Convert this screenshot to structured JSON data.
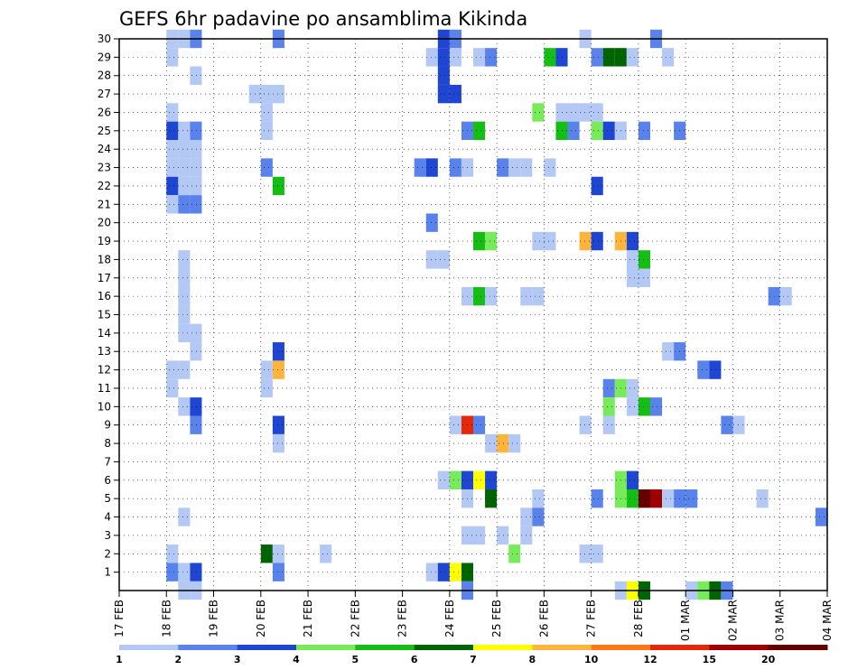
{
  "chart_data": {
    "type": "heatmap",
    "title": "GEFS 6hr padavine po ansamblima Kikinda",
    "xlabel": "",
    "ylabel": "",
    "x_tick_labels": [
      "17 FEB",
      "18 FEB",
      "19 FEB",
      "20 FEB",
      "21 FEB",
      "22 FEB",
      "23 FEB",
      "24 FEB",
      "25 FEB",
      "26 FEB",
      "27 FEB",
      "28 FEB",
      "01 MAR",
      "02 MAR",
      "03 MAR",
      "04 MAR"
    ],
    "y_tick_labels": [
      "1",
      "2",
      "3",
      "4",
      "5",
      "6",
      "7",
      "8",
      "9",
      "10",
      "11",
      "12",
      "13",
      "14",
      "15",
      "16",
      "17",
      "18",
      "19",
      "20",
      "21",
      "22",
      "23",
      "24",
      "25",
      "26",
      "27",
      "28",
      "29",
      "30"
    ],
    "xlim": [
      0,
      60
    ],
    "ylim": [
      0,
      30
    ],
    "x_unit": "6-hour steps from 17 FEB 00Z",
    "grid": true,
    "legend": {
      "position": "bottom",
      "tick_labels": [
        "1",
        "2",
        "3",
        "4",
        "5",
        "6",
        "7",
        "8",
        "10",
        "12",
        "15",
        "20"
      ],
      "colors": [
        "#b4c8f5",
        "#5a82eb",
        "#1e46d2",
        "#78eb5a",
        "#14be14",
        "#006400",
        "#ffff00",
        "#ffb43c",
        "#ff7814",
        "#e6280a",
        "#a00000",
        "#640000"
      ]
    },
    "colors": {
      "1": "#b4c8f5",
      "2": "#5a82eb",
      "3": "#1e46d2",
      "4": "#78eb5a",
      "5": "#14be14",
      "6": "#006400",
      "7": "#ffff00",
      "8": "#ffb43c",
      "9": "#ff7814",
      "10": "#e6280a",
      "11": "#a00000",
      "12": "#640000"
    },
    "cells": [
      [
        4,
        30,
        1
      ],
      [
        5,
        30,
        1
      ],
      [
        6,
        30,
        2
      ],
      [
        13,
        30,
        2
      ],
      [
        27,
        30,
        3
      ],
      [
        28,
        30,
        2
      ],
      [
        39,
        30,
        1
      ],
      [
        45,
        30,
        2
      ],
      [
        4,
        29,
        1
      ],
      [
        26,
        29,
        1
      ],
      [
        27,
        29,
        3
      ],
      [
        28,
        29,
        1
      ],
      [
        30,
        29,
        1
      ],
      [
        31,
        29,
        2
      ],
      [
        36,
        29,
        5
      ],
      [
        37,
        29,
        3
      ],
      [
        40,
        29,
        2
      ],
      [
        41,
        29,
        6
      ],
      [
        42,
        29,
        6
      ],
      [
        43,
        29,
        1
      ],
      [
        46,
        29,
        1
      ],
      [
        6,
        28,
        1
      ],
      [
        27,
        28,
        3
      ],
      [
        11,
        27,
        1
      ],
      [
        12,
        27,
        1
      ],
      [
        13,
        27,
        1
      ],
      [
        27,
        27,
        3
      ],
      [
        28,
        27,
        3
      ],
      [
        4,
        26,
        1
      ],
      [
        12,
        26,
        1
      ],
      [
        35,
        26,
        4
      ],
      [
        37,
        26,
        1
      ],
      [
        38,
        26,
        1
      ],
      [
        39,
        26,
        1
      ],
      [
        40,
        26,
        1
      ],
      [
        4,
        25,
        3
      ],
      [
        5,
        25,
        1
      ],
      [
        6,
        25,
        2
      ],
      [
        12,
        25,
        1
      ],
      [
        29,
        25,
        2
      ],
      [
        30,
        25,
        5
      ],
      [
        37,
        25,
        5
      ],
      [
        38,
        25,
        2
      ],
      [
        40,
        25,
        4
      ],
      [
        41,
        25,
        3
      ],
      [
        42,
        25,
        1
      ],
      [
        44,
        25,
        2
      ],
      [
        47,
        25,
        2
      ],
      [
        4,
        24,
        1
      ],
      [
        5,
        24,
        1
      ],
      [
        6,
        24,
        1
      ],
      [
        4,
        23,
        1
      ],
      [
        5,
        23,
        1
      ],
      [
        6,
        23,
        1
      ],
      [
        12,
        23,
        2
      ],
      [
        25,
        23,
        2
      ],
      [
        26,
        23,
        3
      ],
      [
        28,
        23,
        2
      ],
      [
        29,
        23,
        1
      ],
      [
        32,
        23,
        2
      ],
      [
        33,
        23,
        1
      ],
      [
        34,
        23,
        1
      ],
      [
        36,
        23,
        1
      ],
      [
        4,
        22,
        3
      ],
      [
        5,
        22,
        1
      ],
      [
        6,
        22,
        1
      ],
      [
        13,
        22,
        5
      ],
      [
        40,
        22,
        3
      ],
      [
        4,
        21,
        1
      ],
      [
        5,
        21,
        2
      ],
      [
        6,
        21,
        2
      ],
      [
        26,
        20,
        2
      ],
      [
        30,
        19,
        5
      ],
      [
        31,
        19,
        4
      ],
      [
        35,
        19,
        1
      ],
      [
        36,
        19,
        1
      ],
      [
        39,
        19,
        8
      ],
      [
        40,
        19,
        3
      ],
      [
        42,
        19,
        8
      ],
      [
        43,
        19,
        3
      ],
      [
        5,
        18,
        1
      ],
      [
        26,
        18,
        1
      ],
      [
        27,
        18,
        1
      ],
      [
        43,
        18,
        1
      ],
      [
        44,
        18,
        5
      ],
      [
        5,
        17,
        1
      ],
      [
        43,
        17,
        1
      ],
      [
        44,
        17,
        1
      ],
      [
        5,
        16,
        1
      ],
      [
        29,
        16,
        1
      ],
      [
        30,
        16,
        5
      ],
      [
        31,
        16,
        1
      ],
      [
        34,
        16,
        1
      ],
      [
        35,
        16,
        1
      ],
      [
        55,
        16,
        2
      ],
      [
        56,
        16,
        1
      ],
      [
        5,
        15,
        1
      ],
      [
        5,
        14,
        1
      ],
      [
        6,
        14,
        1
      ],
      [
        6,
        13,
        1
      ],
      [
        13,
        13,
        3
      ],
      [
        46,
        13,
        1
      ],
      [
        47,
        13,
        2
      ],
      [
        4,
        12,
        1
      ],
      [
        5,
        12,
        1
      ],
      [
        12,
        12,
        1
      ],
      [
        13,
        12,
        8
      ],
      [
        49,
        12,
        2
      ],
      [
        50,
        12,
        3
      ],
      [
        4,
        11,
        1
      ],
      [
        12,
        11,
        1
      ],
      [
        41,
        11,
        2
      ],
      [
        42,
        11,
        4
      ],
      [
        43,
        11,
        1
      ],
      [
        5,
        10,
        1
      ],
      [
        6,
        10,
        3
      ],
      [
        41,
        10,
        4
      ],
      [
        43,
        10,
        1
      ],
      [
        44,
        10,
        5
      ],
      [
        45,
        10,
        2
      ],
      [
        6,
        9,
        2
      ],
      [
        13,
        9,
        3
      ],
      [
        28,
        9,
        1
      ],
      [
        29,
        9,
        10
      ],
      [
        30,
        9,
        2
      ],
      [
        39,
        9,
        1
      ],
      [
        41,
        9,
        1
      ],
      [
        51,
        9,
        2
      ],
      [
        52,
        9,
        1
      ],
      [
        13,
        8,
        1
      ],
      [
        31,
        8,
        1
      ],
      [
        32,
        8,
        8
      ],
      [
        33,
        8,
        1
      ],
      [
        27,
        6,
        1
      ],
      [
        28,
        6,
        4
      ],
      [
        29,
        6,
        3
      ],
      [
        30,
        6,
        7
      ],
      [
        31,
        6,
        3
      ],
      [
        42,
        6,
        4
      ],
      [
        43,
        6,
        3
      ],
      [
        29,
        5,
        1
      ],
      [
        31,
        5,
        6
      ],
      [
        35,
        5,
        1
      ],
      [
        40,
        5,
        2
      ],
      [
        42,
        5,
        4
      ],
      [
        43,
        5,
        5
      ],
      [
        44,
        5,
        12
      ],
      [
        45,
        5,
        11
      ],
      [
        46,
        5,
        1
      ],
      [
        47,
        5,
        2
      ],
      [
        48,
        5,
        2
      ],
      [
        54,
        5,
        1
      ],
      [
        5,
        4,
        1
      ],
      [
        34,
        4,
        1
      ],
      [
        35,
        4,
        2
      ],
      [
        59,
        4,
        2
      ],
      [
        29,
        3,
        1
      ],
      [
        30,
        3,
        1
      ],
      [
        32,
        3,
        1
      ],
      [
        34,
        3,
        1
      ],
      [
        4,
        2,
        1
      ],
      [
        12,
        2,
        6
      ],
      [
        13,
        2,
        1
      ],
      [
        17,
        2,
        1
      ],
      [
        33,
        2,
        4
      ],
      [
        39,
        2,
        1
      ],
      [
        40,
        2,
        1
      ],
      [
        4,
        1,
        2
      ],
      [
        5,
        1,
        1
      ],
      [
        6,
        1,
        3
      ],
      [
        13,
        1,
        2
      ],
      [
        26,
        1,
        1
      ],
      [
        27,
        1,
        3
      ],
      [
        28,
        1,
        7
      ],
      [
        29,
        1,
        6
      ],
      [
        5,
        0,
        1
      ],
      [
        6,
        0,
        1
      ],
      [
        29,
        0,
        2
      ],
      [
        42,
        0,
        1
      ],
      [
        43,
        0,
        7
      ],
      [
        44,
        0,
        6
      ],
      [
        48,
        0,
        1
      ],
      [
        49,
        0,
        4
      ],
      [
        50,
        0,
        6
      ],
      [
        51,
        0,
        2
      ]
    ]
  }
}
